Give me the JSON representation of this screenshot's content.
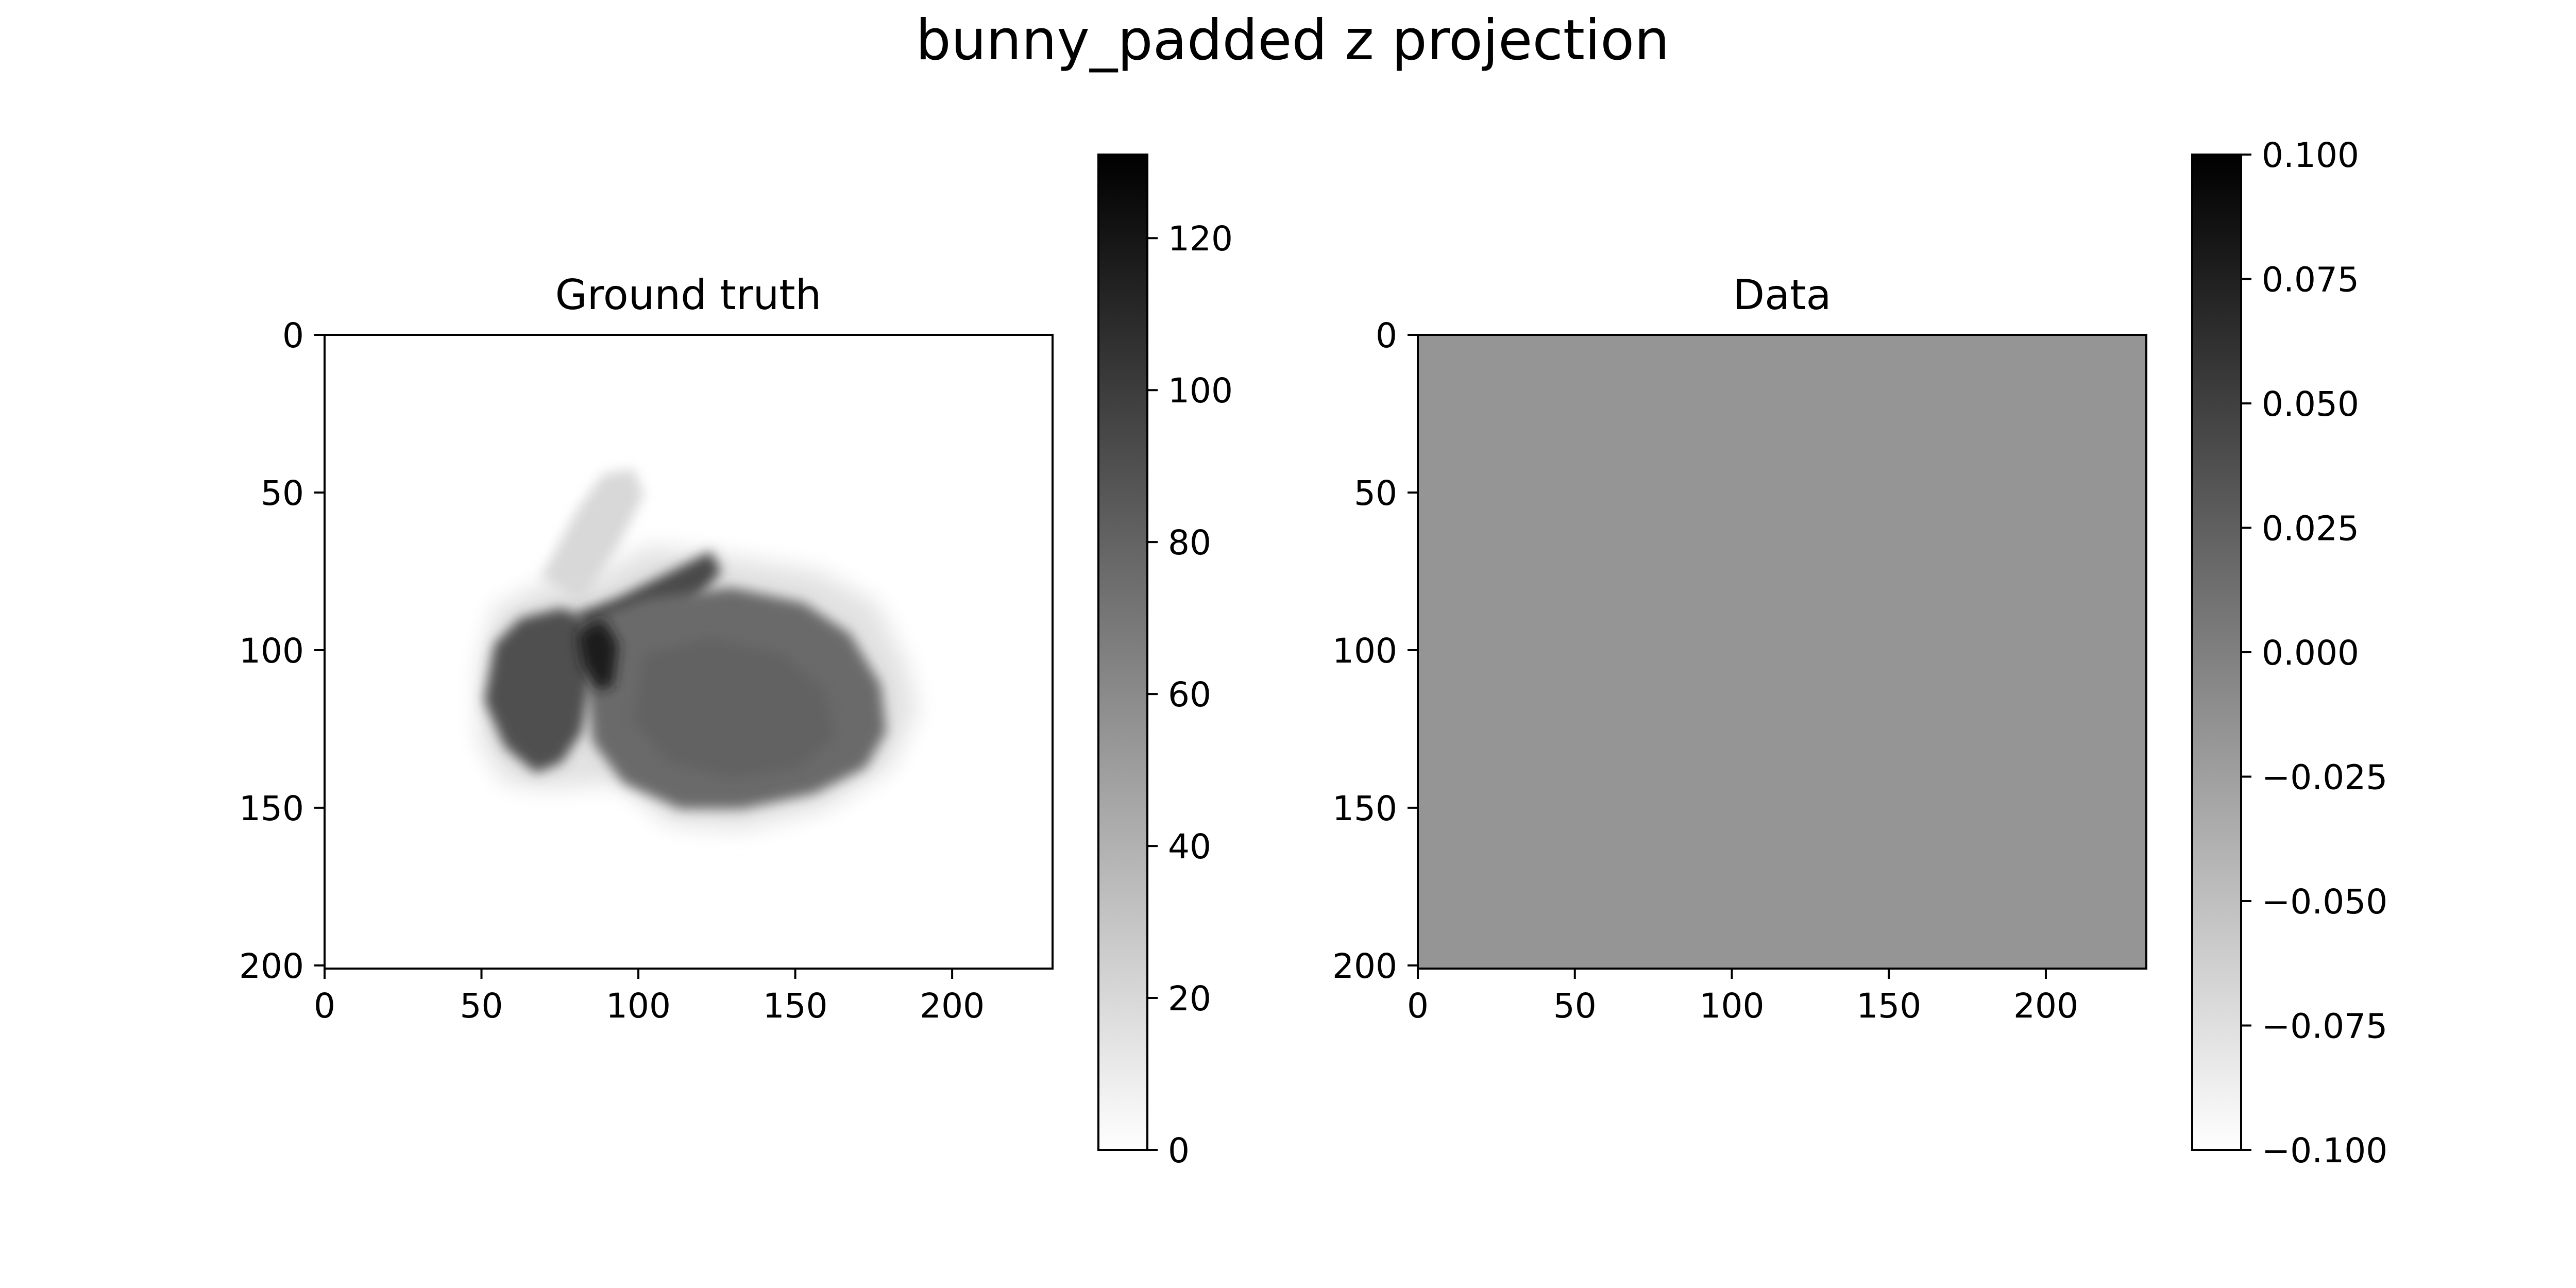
{
  "figure": {
    "suptitle": "bunny_padded z projection"
  },
  "chart_data": [
    {
      "type": "heatmap",
      "title": "Ground truth",
      "image_extent": {
        "x": [
          0,
          232
        ],
        "y": [
          0,
          201
        ]
      },
      "x_ticks": [
        0,
        50,
        100,
        150,
        200
      ],
      "y_ticks": [
        0,
        50,
        100,
        150,
        200
      ],
      "y_inverted": true,
      "colormap": "gray_r",
      "colorbar": {
        "vmin": 0,
        "vmax": 131,
        "ticks": [
          "0",
          "20",
          "40",
          "60",
          "80",
          "100",
          "120"
        ]
      },
      "description_values": {
        "background": 0,
        "body_max": 110
      }
    },
    {
      "type": "heatmap",
      "title": "Data",
      "image_extent": {
        "x": [
          0,
          232
        ],
        "y": [
          0,
          201
        ]
      },
      "x_ticks": [
        0,
        50,
        100,
        150,
        200
      ],
      "y_ticks": [
        0,
        50,
        100,
        150,
        200
      ],
      "y_inverted": true,
      "colormap": "gray_r",
      "uniform_value": 0.0,
      "colorbar": {
        "vmin": -0.1,
        "vmax": 0.1,
        "ticks": [
          "0.100",
          "0.075",
          "0.050",
          "0.025",
          "0.000",
          "−0.025",
          "−0.050",
          "−0.075",
          "−0.100"
        ]
      }
    }
  ],
  "colors": {
    "axis": "#000000",
    "data_fill": "#959595",
    "cbar_top": "#000000",
    "cbar_bottom": "#ffffff"
  }
}
